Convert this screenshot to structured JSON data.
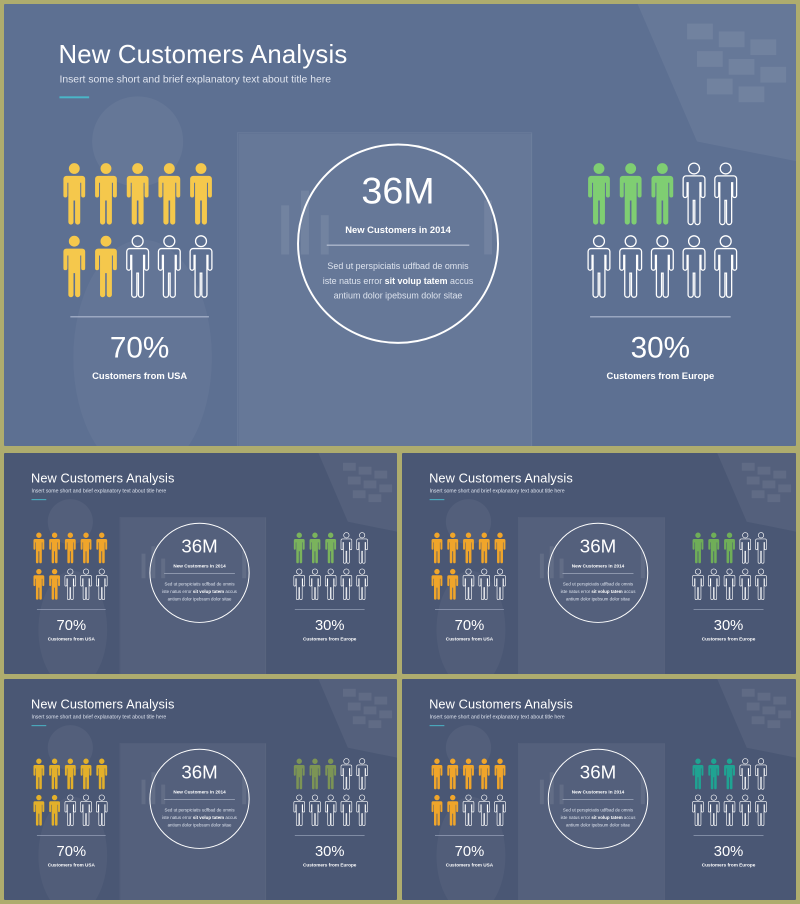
{
  "slide": {
    "title": "New Customers Analysis",
    "subtitle": "Insert some short and brief explanatory text about title here",
    "left_stat": {
      "value": "70%",
      "caption": "Customers from USA",
      "filled": 7,
      "total": 10
    },
    "right_stat": {
      "value": "30%",
      "caption": "Customers from Europe",
      "filled": 3,
      "total": 10
    },
    "center": {
      "value": "36M",
      "label": "New Customers in 2014",
      "body_before": "Sed ut perspiciatis udfbad de omnis iste natus error ",
      "body_bold": "sit volup tatem",
      "body_after": " accus antium dolor ipebsum dolor sitae"
    },
    "person_icon": "person-icon"
  },
  "variants": [
    {
      "name": "main",
      "bg": "#5d7092",
      "left_color": "#f5c84c",
      "right_color": "#7fce72",
      "accent_line": "#4ab6c8"
    },
    {
      "name": "orange-green",
      "bg": "#4a5774",
      "left_color": "#f0a52a",
      "right_color": "#7ab35c",
      "accent_line": "#4ab6c8"
    },
    {
      "name": "orange-green-2",
      "bg": "#4a5774",
      "left_color": "#f0a52a",
      "right_color": "#6fae58",
      "accent_line": "#4ab6c8"
    },
    {
      "name": "gold-olive",
      "bg": "#4a5774",
      "left_color": "#e3b02a",
      "right_color": "#7c9455",
      "accent_line": "#4ab6c8"
    },
    {
      "name": "orange-teal",
      "bg": "#4a5774",
      "left_color": "#f0a52a",
      "right_color": "#1fa392",
      "accent_line": "#4ab6c8"
    }
  ]
}
